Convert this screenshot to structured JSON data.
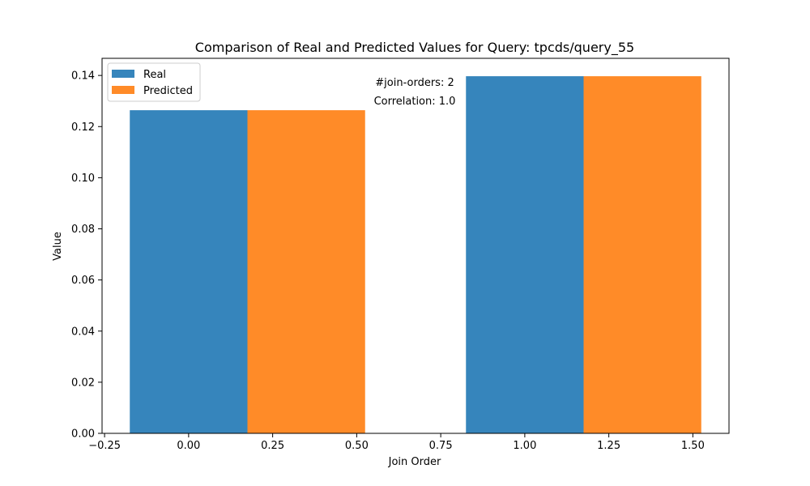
{
  "chart_data": {
    "type": "bar",
    "title": "Comparison of Real and Predicted Values for Query: tpcds/query_55",
    "xlabel": "Join Order",
    "ylabel": "Value",
    "x": [
      0,
      1
    ],
    "bar_width": 0.35,
    "series": [
      {
        "name": "Real",
        "values": [
          0.1264,
          0.1397
        ],
        "color": "#3685bc",
        "offset": 0
      },
      {
        "name": "Predicted",
        "values": [
          0.1264,
          0.1397
        ],
        "color": "#ff8b28",
        "offset": 0.35
      }
    ],
    "xlim": [
      -0.2575,
      1.6075
    ],
    "ylim": [
      0,
      0.1467
    ],
    "xticks": [
      -0.25,
      0.0,
      0.25,
      0.5,
      0.75,
      1.0,
      1.25,
      1.5
    ],
    "xtick_labels": [
      "−0.25",
      "0.00",
      "0.25",
      "0.50",
      "0.75",
      "1.00",
      "1.25",
      "1.50"
    ],
    "yticks": [
      0,
      0.02,
      0.04,
      0.06,
      0.08,
      0.1,
      0.12,
      0.14
    ],
    "ytick_labels": [
      "0.00",
      "0.02",
      "0.04",
      "0.06",
      "0.08",
      "0.10",
      "0.12",
      "0.14"
    ],
    "annotations": [
      "#join-orders: 2",
      "Correlation: 1.0"
    ],
    "legend_position": "upper-left",
    "grid": false
  }
}
